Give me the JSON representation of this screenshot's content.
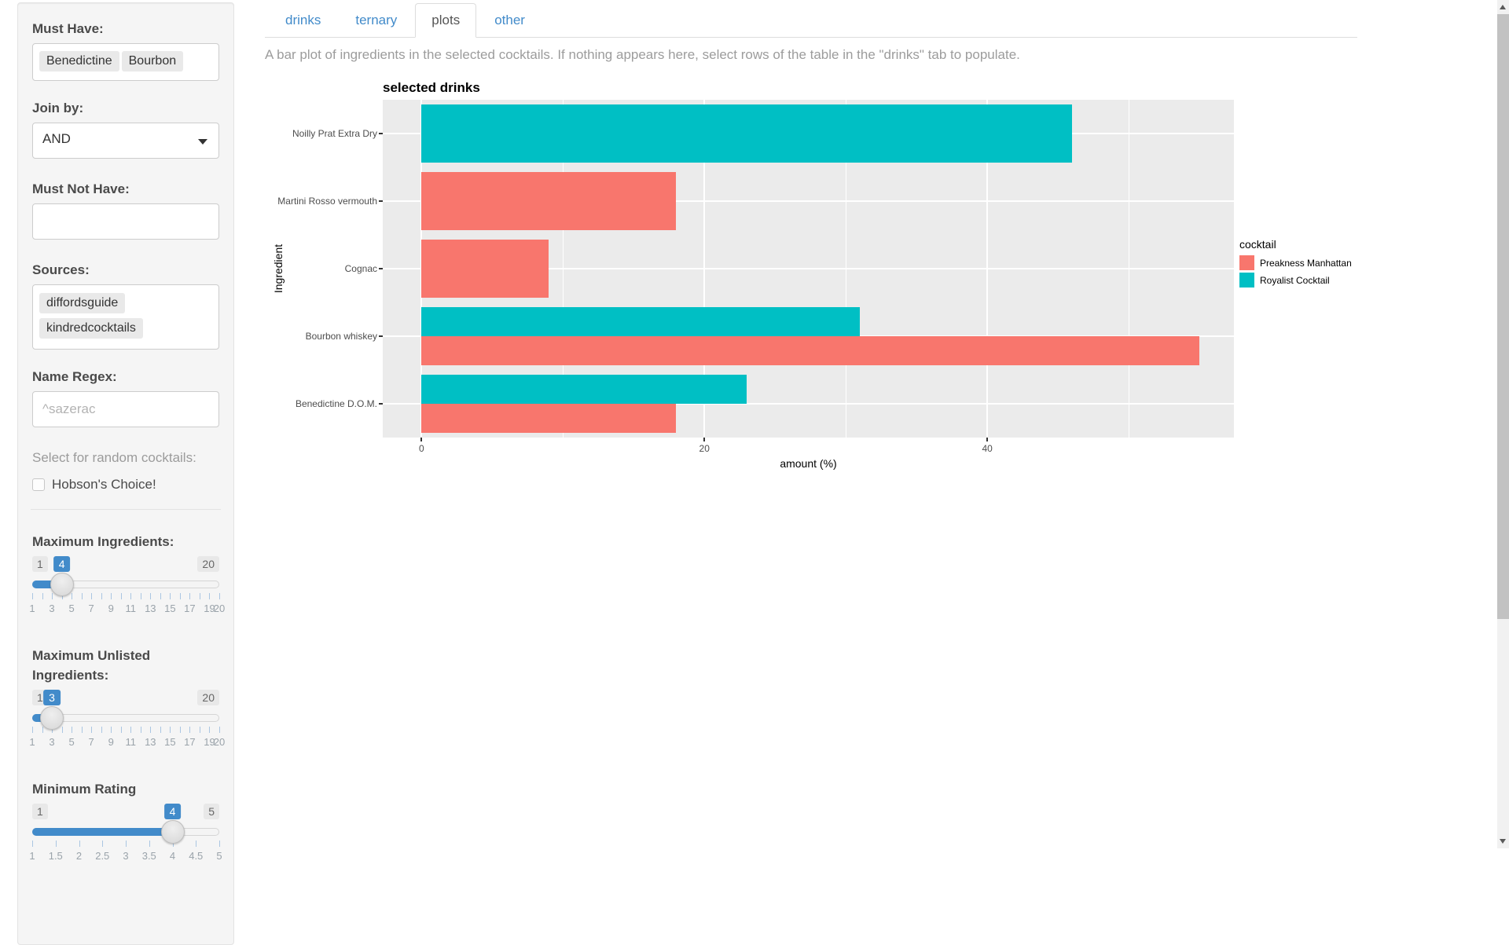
{
  "sidebar": {
    "must_have": {
      "label": "Must Have:",
      "tags": [
        "Benedictine",
        "Bourbon"
      ]
    },
    "join_by": {
      "label": "Join by:",
      "value": "AND"
    },
    "must_not_have": {
      "label": "Must Not Have:",
      "value": ""
    },
    "sources": {
      "label": "Sources:",
      "tags": [
        "diffordsguide",
        "kindredcocktails"
      ]
    },
    "name_regex": {
      "label": "Name Regex:",
      "placeholder": "^sazerac"
    },
    "random_help": "Select for random cocktails:",
    "hobsons": {
      "label": "Hobson's Choice!",
      "checked": false
    },
    "sliders": [
      {
        "label": "Maximum Ingredients:",
        "min_label": "1",
        "max_label": "20",
        "value_label": "4",
        "value_pct": 15.8,
        "tick_count": 20,
        "grid_labels": [
          {
            "text": "1",
            "pct": 0
          },
          {
            "text": "3",
            "pct": 10.53
          },
          {
            "text": "5",
            "pct": 21.05
          },
          {
            "text": "7",
            "pct": 31.58
          },
          {
            "text": "9",
            "pct": 42.11
          },
          {
            "text": "11",
            "pct": 52.63
          },
          {
            "text": "13",
            "pct": 63.16
          },
          {
            "text": "15",
            "pct": 73.68
          },
          {
            "text": "17",
            "pct": 84.21
          },
          {
            "text": "19",
            "pct": 94.74
          },
          {
            "text": "20",
            "pct": 100
          }
        ]
      },
      {
        "label": "Maximum Unlisted Ingredients:",
        "min_label": "1",
        "max_label": "20",
        "value_label": "3",
        "value_pct": 10.5,
        "tick_count": 20,
        "grid_labels": [
          {
            "text": "1",
            "pct": 0
          },
          {
            "text": "3",
            "pct": 10.53
          },
          {
            "text": "5",
            "pct": 21.05
          },
          {
            "text": "7",
            "pct": 31.58
          },
          {
            "text": "9",
            "pct": 42.11
          },
          {
            "text": "11",
            "pct": 52.63
          },
          {
            "text": "13",
            "pct": 63.16
          },
          {
            "text": "15",
            "pct": 73.68
          },
          {
            "text": "17",
            "pct": 84.21
          },
          {
            "text": "19",
            "pct": 94.74
          },
          {
            "text": "20",
            "pct": 100
          }
        ]
      },
      {
        "label": "Minimum Rating",
        "min_label": "1",
        "max_label": "5",
        "value_label": "4",
        "value_pct": 75,
        "tick_count": 9,
        "grid_labels": [
          {
            "text": "1",
            "pct": 0
          },
          {
            "text": "1.5",
            "pct": 12.5
          },
          {
            "text": "2",
            "pct": 25
          },
          {
            "text": "2.5",
            "pct": 37.5
          },
          {
            "text": "3",
            "pct": 50
          },
          {
            "text": "3.5",
            "pct": 62.5
          },
          {
            "text": "4",
            "pct": 75
          },
          {
            "text": "4.5",
            "pct": 87.5
          },
          {
            "text": "5",
            "pct": 100
          }
        ]
      }
    ]
  },
  "tabs": [
    {
      "label": "drinks",
      "active": false
    },
    {
      "label": "ternary",
      "active": false
    },
    {
      "label": "plots",
      "active": true
    },
    {
      "label": "other",
      "active": false
    }
  ],
  "main": {
    "description": "A bar plot of ingredients in the selected cocktails. If nothing appears here, select rows of the table in the \"drinks\" tab to populate."
  },
  "chart_data": {
    "type": "bar",
    "orientation": "horizontal",
    "title": "selected drinks",
    "xlabel": "amount (%)",
    "ylabel": "Ingredient",
    "xlim": [
      -2.74,
      57.44
    ],
    "x_major_ticks": [
      0,
      20,
      40
    ],
    "x_minor_gridlines": [
      10,
      30,
      50
    ],
    "grid": true,
    "legend_position": "right",
    "categories": [
      "Noilly Prat Extra Dry",
      "Martini Rosso vermouth",
      "Cognac",
      "Bourbon whiskey",
      "Benedictine D.O.M."
    ],
    "series": [
      {
        "name": "Preakness Manhattan",
        "color": "#F8766D",
        "values": [
          null,
          18,
          9,
          55,
          18
        ]
      },
      {
        "name": "Royalist Cocktail",
        "color": "#00BFC4",
        "values": [
          46,
          null,
          null,
          31,
          23
        ]
      }
    ],
    "rows": [
      {
        "category": "Noilly Prat Extra Dry",
        "bars": [
          {
            "cocktail": "Royalist Cocktail",
            "value": 46
          }
        ]
      },
      {
        "category": "Martini Rosso vermouth",
        "bars": [
          {
            "cocktail": "Preakness Manhattan",
            "value": 18
          }
        ]
      },
      {
        "category": "Cognac",
        "bars": [
          {
            "cocktail": "Preakness Manhattan",
            "value": 9
          }
        ]
      },
      {
        "category": "Bourbon whiskey",
        "bars": [
          {
            "cocktail": "Royalist Cocktail",
            "value": 31
          },
          {
            "cocktail": "Preakness Manhattan",
            "value": 55
          }
        ]
      },
      {
        "category": "Benedictine D.O.M.",
        "bars": [
          {
            "cocktail": "Royalist Cocktail",
            "value": 23
          },
          {
            "cocktail": "Preakness Manhattan",
            "value": 18
          }
        ]
      }
    ],
    "series_colors": {
      "Preakness Manhattan": "#F8766D",
      "Royalist Cocktail": "#00BFC4"
    },
    "legend": {
      "title": "cocktail",
      "entries": [
        "Preakness Manhattan",
        "Royalist Cocktail"
      ]
    }
  },
  "colors": {
    "accent": "#428bca",
    "sidebar_bg": "#f5f5f5",
    "plot_panel_bg": "#ebebeb",
    "bar_salmon": "#F8766D",
    "bar_teal": "#00BFC4",
    "muted_text": "#9c9c9c"
  },
  "icons": {
    "select_caret": "caret-down",
    "scrollbar_up": "triangle-up",
    "scrollbar_down": "triangle-down",
    "checkbox": "unchecked-square",
    "slider_handle": "circle"
  }
}
